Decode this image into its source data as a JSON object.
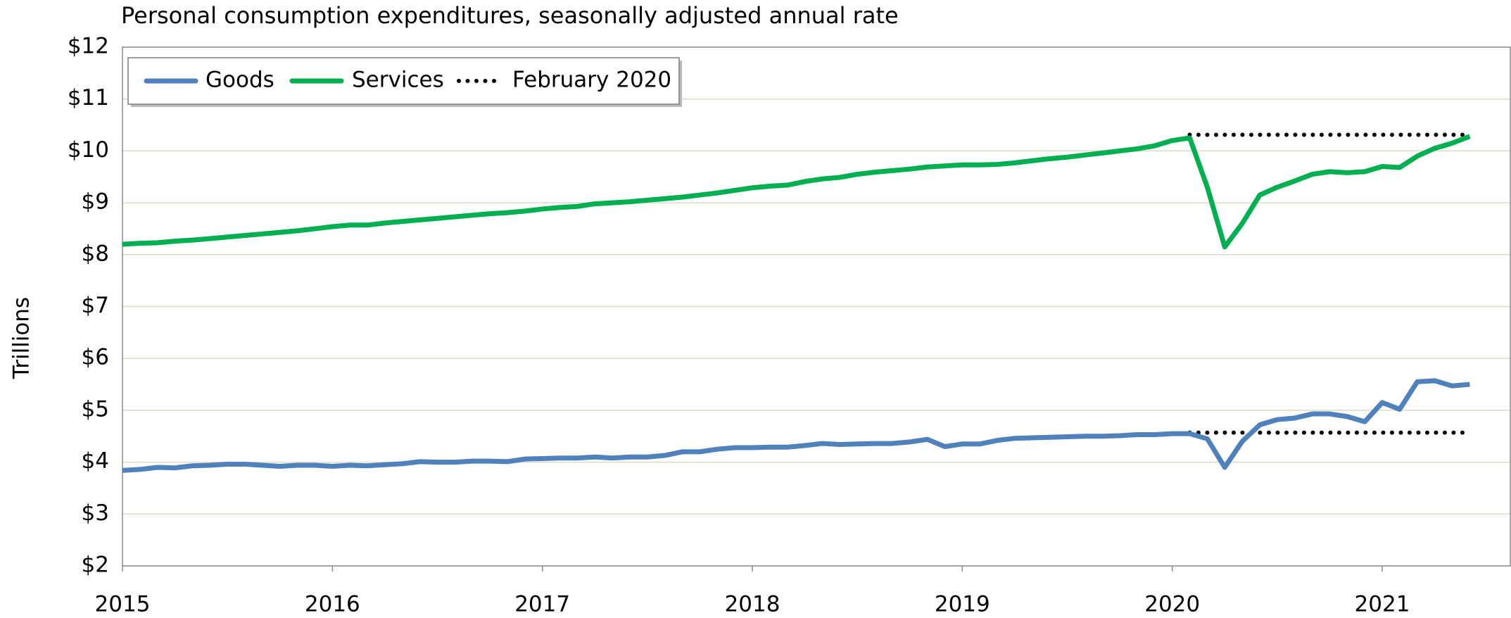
{
  "chart_data": {
    "type": "line",
    "title": "Personal consumption expenditures, seasonally adjusted annual rate",
    "ylabel": "Trillions",
    "x": [
      2015,
      2015.083,
      2015.167,
      2015.25,
      2015.333,
      2015.417,
      2015.5,
      2015.583,
      2015.667,
      2015.75,
      2015.833,
      2015.917,
      2016,
      2016.083,
      2016.167,
      2016.25,
      2016.333,
      2016.417,
      2016.5,
      2016.583,
      2016.667,
      2016.75,
      2016.833,
      2016.917,
      2017,
      2017.083,
      2017.167,
      2017.25,
      2017.333,
      2017.417,
      2017.5,
      2017.583,
      2017.667,
      2017.75,
      2017.833,
      2017.917,
      2018,
      2018.083,
      2018.167,
      2018.25,
      2018.333,
      2018.417,
      2018.5,
      2018.583,
      2018.667,
      2018.75,
      2018.833,
      2018.917,
      2019,
      2019.083,
      2019.167,
      2019.25,
      2019.333,
      2019.417,
      2019.5,
      2019.583,
      2019.667,
      2019.75,
      2019.833,
      2019.917,
      2020,
      2020.083,
      2020.167,
      2020.25,
      2020.333,
      2020.417,
      2020.5,
      2020.583,
      2020.667,
      2020.75,
      2020.833,
      2020.917,
      2021,
      2021.083,
      2021.167,
      2021.25,
      2021.333,
      2021.417
    ],
    "series": [
      {
        "name": "Goods",
        "color": "#4f81bd",
        "values": [
          3.84,
          3.86,
          3.9,
          3.89,
          3.93,
          3.94,
          3.96,
          3.96,
          3.94,
          3.92,
          3.94,
          3.94,
          3.92,
          3.94,
          3.93,
          3.95,
          3.97,
          4.01,
          4.0,
          4.0,
          4.02,
          4.02,
          4.01,
          4.06,
          4.07,
          4.08,
          4.08,
          4.1,
          4.08,
          4.1,
          4.1,
          4.13,
          4.2,
          4.2,
          4.25,
          4.28,
          4.28,
          4.29,
          4.29,
          4.32,
          4.36,
          4.34,
          4.35,
          4.36,
          4.36,
          4.39,
          4.44,
          4.3,
          4.35,
          4.35,
          4.42,
          4.46,
          4.47,
          4.48,
          4.49,
          4.5,
          4.5,
          4.51,
          4.53,
          4.53,
          4.55,
          4.55,
          4.45,
          3.9,
          4.4,
          4.72,
          4.82,
          4.85,
          4.93,
          4.93,
          4.88,
          4.78,
          5.15,
          5.02,
          5.55,
          5.57,
          5.47,
          5.5
        ]
      },
      {
        "name": "Services",
        "color": "#00b050",
        "values": [
          8.2,
          8.22,
          8.23,
          8.26,
          8.28,
          8.31,
          8.34,
          8.37,
          8.4,
          8.43,
          8.46,
          8.5,
          8.54,
          8.57,
          8.57,
          8.61,
          8.64,
          8.67,
          8.7,
          8.73,
          8.76,
          8.79,
          8.81,
          8.84,
          8.88,
          8.91,
          8.93,
          8.98,
          9.0,
          9.02,
          9.05,
          9.08,
          9.11,
          9.15,
          9.19,
          9.24,
          9.29,
          9.32,
          9.34,
          9.41,
          9.46,
          9.49,
          9.55,
          9.59,
          9.62,
          9.65,
          9.69,
          9.71,
          9.73,
          9.73,
          9.74,
          9.77,
          9.81,
          9.85,
          9.88,
          9.92,
          9.96,
          10.0,
          10.04,
          10.1,
          10.2,
          10.25,
          9.3,
          8.15,
          8.6,
          9.15,
          9.3,
          9.42,
          9.55,
          9.6,
          9.58,
          9.6,
          9.7,
          9.68,
          9.9,
          10.05,
          10.15,
          10.28
        ]
      }
    ],
    "reference": {
      "name": "February 2020",
      "color": "#000000",
      "x": [
        2020.083,
        2021.417
      ],
      "values": [
        10.31,
        4.57
      ]
    },
    "xlim": [
      2015,
      2021.61
    ],
    "xticks": [
      2015,
      2016,
      2017,
      2018,
      2019,
      2020,
      2021
    ],
    "ylim": [
      2,
      12
    ],
    "yticks": [
      {
        "value": 2,
        "label": "$2"
      },
      {
        "value": 3,
        "label": "$3"
      },
      {
        "value": 4,
        "label": "$4"
      },
      {
        "value": 5,
        "label": "$5"
      },
      {
        "value": 6,
        "label": "$6"
      },
      {
        "value": 7,
        "label": "$7"
      },
      {
        "value": 8,
        "label": "$8"
      },
      {
        "value": 9,
        "label": "$9"
      },
      {
        "value": 10,
        "label": "$10"
      },
      {
        "value": 11,
        "label": "$11"
      },
      {
        "value": 12,
        "label": "$12"
      }
    ],
    "grid": true,
    "legend": "top-left"
  }
}
